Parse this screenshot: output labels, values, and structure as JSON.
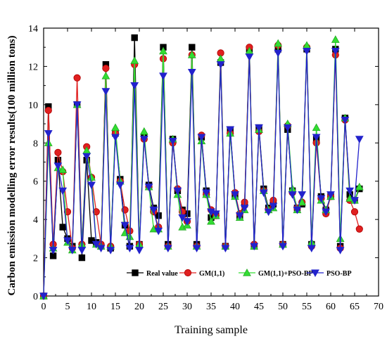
{
  "chart_data": {
    "type": "line",
    "title": "",
    "xlabel": "Training sample",
    "ylabel": "Carbon emission modelling error results(100  million tons)",
    "xlim": [
      0,
      70
    ],
    "ylim": [
      0,
      14
    ],
    "xticks": [
      0,
      5,
      10,
      15,
      20,
      25,
      30,
      35,
      40,
      45,
      50,
      55,
      60,
      65,
      70
    ],
    "yticks": [
      0,
      2,
      4,
      6,
      8,
      10,
      12,
      14
    ],
    "legend_position": "bottom-right",
    "x": [
      0,
      1,
      2,
      3,
      4,
      5,
      6,
      7,
      8,
      9,
      10,
      11,
      12,
      13,
      14,
      15,
      16,
      17,
      18,
      19,
      20,
      21,
      22,
      23,
      24,
      25,
      26,
      27,
      28,
      29,
      30,
      31,
      32,
      33,
      34,
      35,
      36,
      37,
      38,
      39,
      40,
      41,
      42,
      43,
      44,
      45,
      46,
      47,
      48,
      49,
      50,
      51,
      52,
      53,
      54,
      55,
      56,
      57,
      58,
      59,
      60,
      61,
      62,
      63,
      64,
      65,
      66
    ],
    "series": [
      {
        "name": "Real value",
        "color": "#000000",
        "marker": "square",
        "values": [
          0,
          9.9,
          2.1,
          7.1,
          3.6,
          3.0,
          2.6,
          10.0,
          2.0,
          7.1,
          2.9,
          2.8,
          2.6,
          12.1,
          2.5,
          8.5,
          6.1,
          3.7,
          2.6,
          13.5,
          2.7,
          8.3,
          5.8,
          4.6,
          4.2,
          13.0,
          2.7,
          8.2,
          5.5,
          4.5,
          4.3,
          13.0,
          2.7,
          8.3,
          5.5,
          4.1,
          4.2,
          12.2,
          2.6,
          8.7,
          5.3,
          4.2,
          4.8,
          12.9,
          2.6,
          8.8,
          5.6,
          4.6,
          4.8,
          12.9,
          2.7,
          8.7,
          5.5,
          4.6,
          4.8,
          12.9,
          2.7,
          8.2,
          5.2,
          4.5,
          5.2,
          12.9,
          2.6,
          9.3,
          5.3,
          5.0,
          5.6
        ]
      },
      {
        "name": "GM(1,1)",
        "color": "#e02020",
        "marker": "circle",
        "values": [
          0,
          9.7,
          2.7,
          7.5,
          6.5,
          4.4,
          2.5,
          11.4,
          2.7,
          7.8,
          6.2,
          4.4,
          2.7,
          11.9,
          2.6,
          8.5,
          6.0,
          4.5,
          3.4,
          12.1,
          2.7,
          8.2,
          5.7,
          4.4,
          3.6,
          12.4,
          2.6,
          8.0,
          5.6,
          4.4,
          3.9,
          12.6,
          2.6,
          8.4,
          5.3,
          4.5,
          4.2,
          12.7,
          2.6,
          8.5,
          5.4,
          4.3,
          4.9,
          13.0,
          2.7,
          8.6,
          5.5,
          4.5,
          5.0,
          13.1,
          2.7,
          8.9,
          5.4,
          4.6,
          4.9,
          13.0,
          2.6,
          8.0,
          5.1,
          4.3,
          5.2,
          12.6,
          2.5,
          9.2,
          5.0,
          4.4,
          3.5
        ]
      },
      {
        "name": "GM(1,1)+PSO-BP",
        "color": "#33dd33",
        "marker": "triangle-up",
        "values": [
          0,
          8.0,
          2.5,
          6.7,
          6.6,
          2.8,
          2.4,
          10.0,
          2.7,
          7.6,
          6.2,
          2.7,
          2.6,
          11.5,
          2.6,
          8.8,
          6.0,
          3.3,
          3.1,
          12.3,
          2.7,
          8.6,
          5.7,
          3.5,
          3.5,
          12.8,
          2.6,
          8.2,
          5.3,
          3.6,
          3.7,
          12.6,
          2.6,
          8.1,
          5.3,
          3.9,
          4.2,
          12.4,
          2.6,
          8.5,
          5.2,
          4.1,
          4.5,
          12.8,
          2.6,
          8.7,
          5.5,
          4.5,
          4.6,
          13.2,
          2.7,
          9.0,
          5.6,
          4.5,
          4.9,
          13.1,
          2.8,
          8.8,
          5.0,
          4.5,
          5.2,
          13.4,
          3.0,
          9.3,
          5.1,
          5.0,
          5.7
        ]
      },
      {
        "name": "PSO-BP",
        "color": "#2222cc",
        "marker": "triangle-down",
        "values": [
          0,
          8.5,
          2.4,
          6.8,
          5.5,
          2.9,
          2.4,
          10.0,
          2.4,
          7.3,
          5.8,
          2.7,
          2.5,
          10.7,
          2.4,
          8.3,
          5.8,
          3.7,
          2.5,
          11.0,
          2.4,
          8.2,
          5.7,
          4.5,
          3.4,
          11.5,
          2.5,
          8.1,
          5.5,
          4.1,
          3.9,
          11.7,
          2.5,
          8.3,
          5.4,
          4.4,
          4.3,
          12.1,
          2.5,
          8.7,
          5.3,
          4.2,
          4.6,
          12.5,
          2.6,
          8.8,
          5.4,
          4.4,
          4.7,
          12.7,
          2.6,
          8.8,
          5.3,
          4.5,
          5.3,
          12.8,
          2.5,
          8.3,
          5.1,
          4.4,
          5.3,
          12.8,
          2.4,
          9.2,
          5.5,
          5.0,
          8.2
        ]
      }
    ]
  }
}
